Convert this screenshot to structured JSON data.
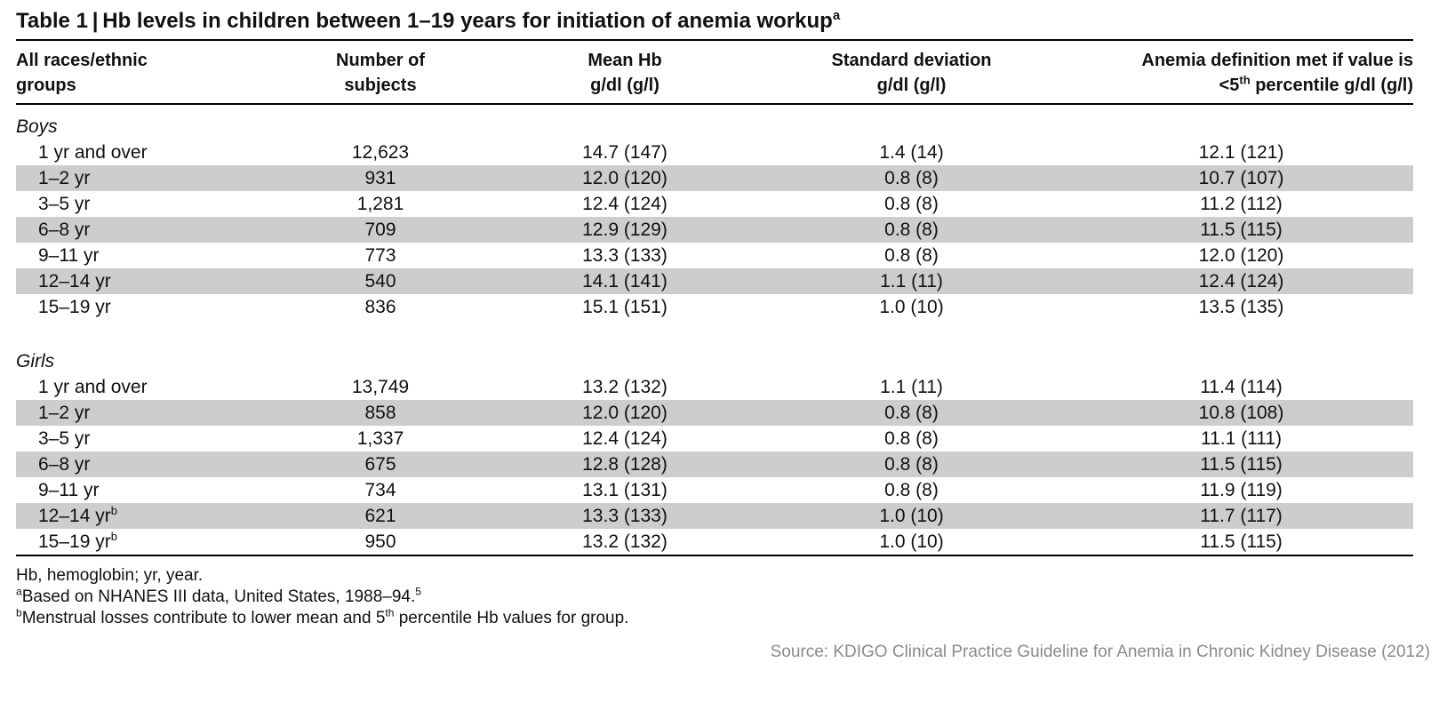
{
  "title": {
    "text": "Table 1 | Hb levels in children between 1–19 years for initiation of anemia workup",
    "footnote_marker": "a"
  },
  "columns": {
    "c1_line1": "All races/ethnic",
    "c1_line2": "groups",
    "c2_line1": "Number of",
    "c2_line2": "subjects",
    "c3_line1": "Mean Hb",
    "c3_line2": "g/dl (g/l)",
    "c4_line1": "Standard deviation",
    "c4_line2": "g/dl (g/l)",
    "c5_line1": "Anemia definition met if value is",
    "c5_line2_pre": "<5",
    "c5_line2_sup": "th",
    "c5_line2_post": " percentile g/dl (g/l)"
  },
  "boys": {
    "label": "Boys",
    "rows": [
      {
        "group": "1 yr and over",
        "n": "12,623",
        "mean": "14.7 (147)",
        "sd": "1.4 (14)",
        "cutoff": "12.1 (121)"
      },
      {
        "group": "1–2 yr",
        "n": "931",
        "mean": "12.0 (120)",
        "sd": "0.8 (8)",
        "cutoff": "10.7 (107)"
      },
      {
        "group": "3–5 yr",
        "n": "1,281",
        "mean": "12.4 (124)",
        "sd": "0.8 (8)",
        "cutoff": "11.2 (112)"
      },
      {
        "group": "6–8 yr",
        "n": "709",
        "mean": "12.9 (129)",
        "sd": "0.8 (8)",
        "cutoff": "11.5 (115)"
      },
      {
        "group": "9–11 yr",
        "n": "773",
        "mean": "13.3 (133)",
        "sd": "0.8 (8)",
        "cutoff": "12.0 (120)"
      },
      {
        "group": "12–14 yr",
        "n": "540",
        "mean": "14.1 (141)",
        "sd": "1.1 (11)",
        "cutoff": "12.4 (124)"
      },
      {
        "group": "15–19 yr",
        "n": "836",
        "mean": "15.1 (151)",
        "sd": "1.0 (10)",
        "cutoff": "13.5 (135)"
      }
    ]
  },
  "girls": {
    "label": "Girls",
    "rows": [
      {
        "group": "1 yr and over",
        "n": "13,749",
        "mean": "13.2 (132)",
        "sd": "1.1 (11)",
        "cutoff": "11.4 (114)"
      },
      {
        "group": "1–2 yr",
        "n": "858",
        "mean": "12.0 (120)",
        "sd": "0.8 (8)",
        "cutoff": "10.8 (108)"
      },
      {
        "group": "3–5 yr",
        "n": "1,337",
        "mean": "12.4 (124)",
        "sd": "0.8 (8)",
        "cutoff": "11.1 (111)"
      },
      {
        "group": "6–8 yr",
        "n": "675",
        "mean": "12.8 (128)",
        "sd": "0.8 (8)",
        "cutoff": "11.5 (115)"
      },
      {
        "group": "9–11 yr",
        "n": "734",
        "mean": "13.1 (131)",
        "sd": "0.8 (8)",
        "cutoff": "11.9 (119)"
      },
      {
        "group": "12–14 yr",
        "marker": "b",
        "n": "621",
        "mean": "13.3 (133)",
        "sd": "1.0 (10)",
        "cutoff": "11.7 (117)"
      },
      {
        "group": "15–19 yr",
        "marker": "b",
        "n": "950",
        "mean": "13.2 (132)",
        "sd": "1.0 (10)",
        "cutoff": "11.5 (115)"
      }
    ]
  },
  "notes": {
    "abbrev": "Hb, hemoglobin; yr, year.",
    "a_marker": "a",
    "a_text": "Based on NHANES III data, United States, 1988–94.",
    "a_ref": "5",
    "b_marker": "b",
    "b_pre": "Menstrual losses contribute to lower mean and 5",
    "b_sup": "th",
    "b_post": " percentile Hb values for group."
  },
  "source": "Source: KDIGO Clinical Practice Guideline for Anemia in Chronic Kidney Disease (2012)",
  "colors": {
    "row_shade": "#cdcdcd",
    "source_text": "#8a8a8a"
  }
}
